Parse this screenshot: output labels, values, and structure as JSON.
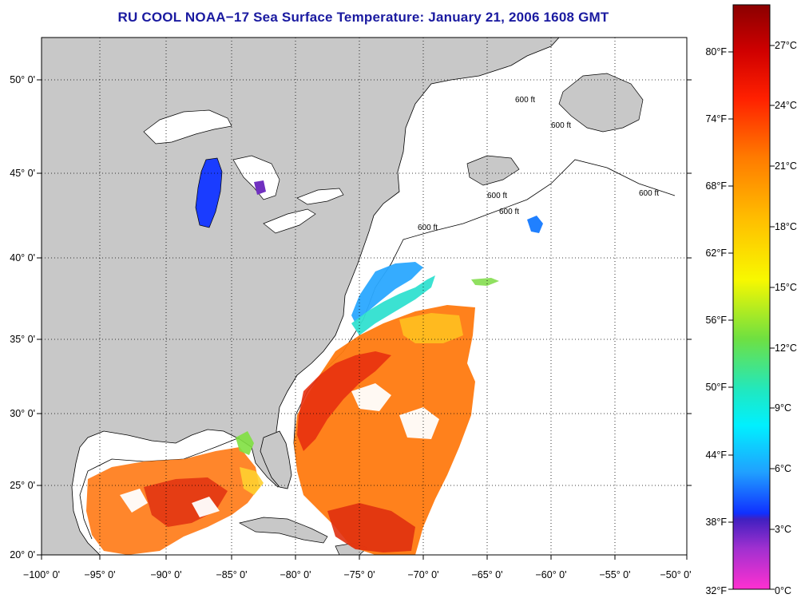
{
  "title": "RU COOL  NOAA−17  Sea Surface Temperature:  January 21, 2006 1608 GMT",
  "map": {
    "lon_ticks": [
      "−100° 0'",
      "−95° 0'",
      "−90° 0'",
      "−85° 0'",
      "−80° 0'",
      "−75° 0'",
      "−70° 0'",
      "−65° 0'",
      "−60° 0'",
      "−55° 0'",
      "−50° 0'"
    ],
    "lat_ticks": [
      "50° 0'",
      "45° 0'",
      "40° 0'",
      "35° 0'",
      "30° 0'",
      "25° 0'",
      "20° 0'"
    ],
    "contour_label": "600 ft",
    "colors": {
      "land": "#c8c8c8",
      "ocean_no_data": "#ffffff",
      "lake_cold": "#1a3cff"
    }
  },
  "colorbar": {
    "fahrenheit_labels": [
      "80°F",
      "74°F",
      "68°F",
      "62°F",
      "56°F",
      "50°F",
      "44°F",
      "38°F",
      "32°F"
    ],
    "celsius_labels": [
      "27°C",
      "24°C",
      "21°C",
      "18°C",
      "15°C",
      "12°C",
      "9°C",
      "6°C",
      "3°C",
      "0°C"
    ]
  }
}
